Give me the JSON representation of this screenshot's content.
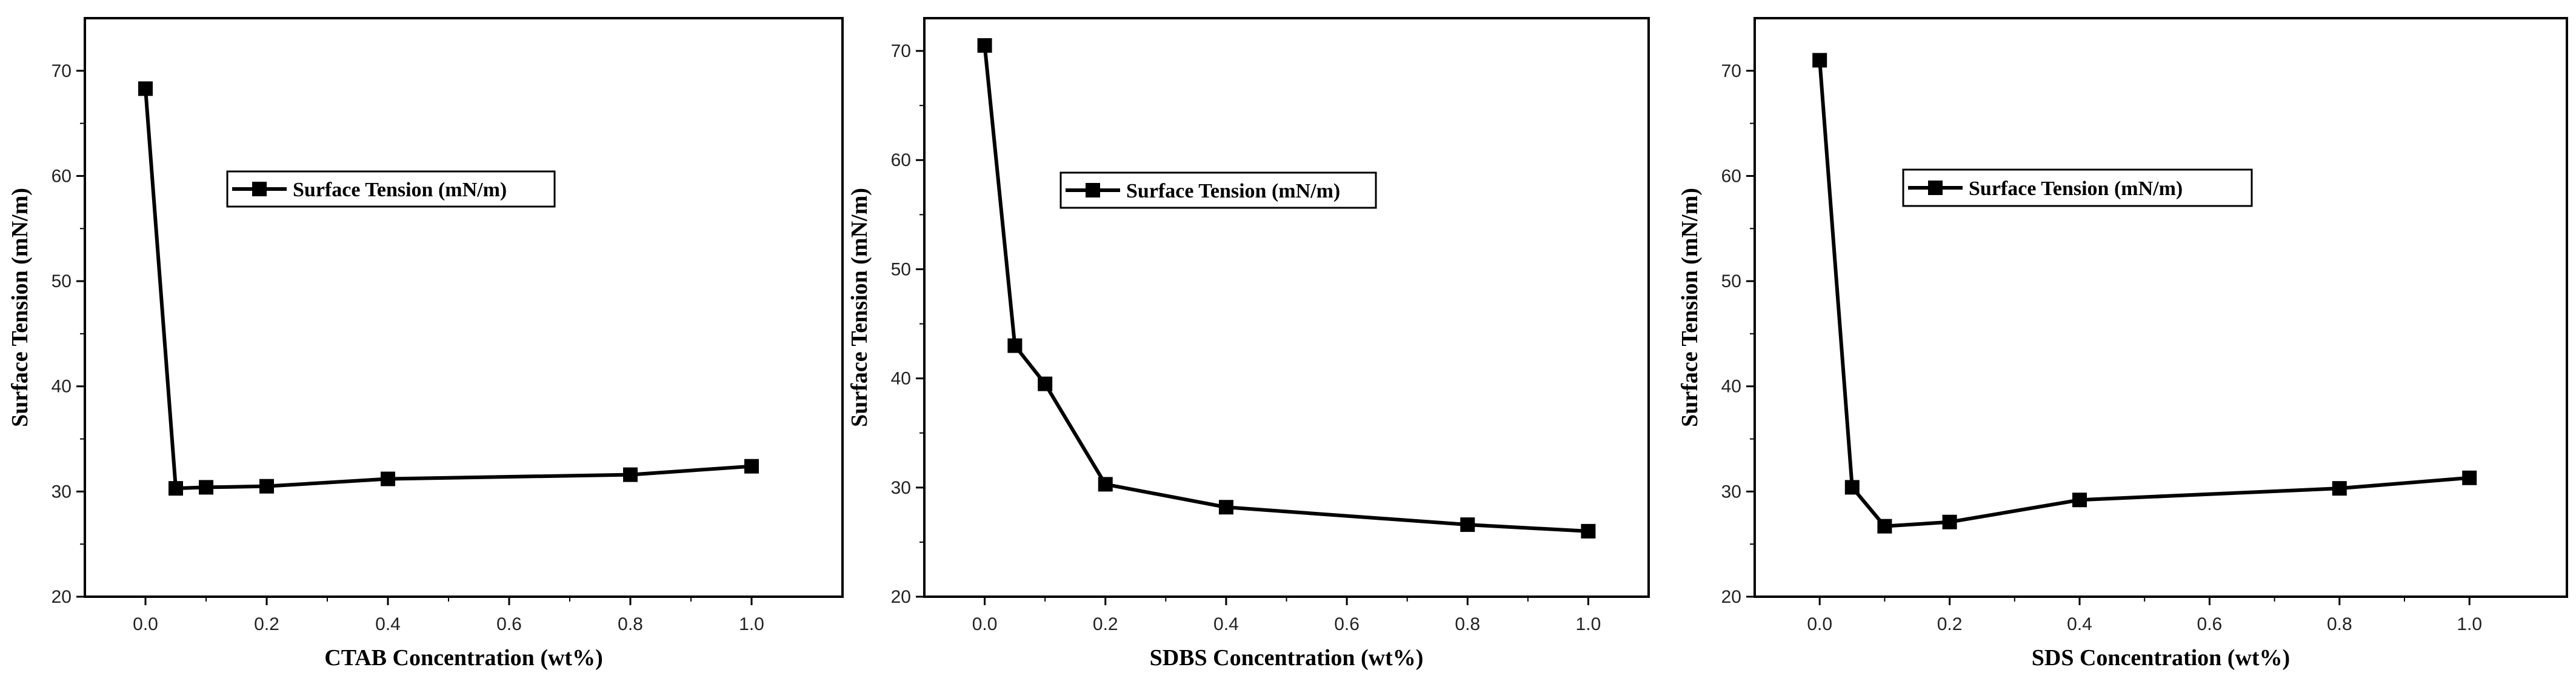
{
  "chart_data": [
    {
      "type": "line",
      "xlabel": "CTAB Concentration (wt%)",
      "ylabel": "Surface Tension (mN/m)",
      "xlim": [
        -0.1,
        1.15
      ],
      "ylim": [
        20,
        75
      ],
      "xticks": [
        0.0,
        0.2,
        0.4,
        0.6,
        0.8,
        1.0
      ],
      "xtick_labels": [
        "0.0",
        "0.2",
        "0.4",
        "0.6",
        "0.8",
        "1.0"
      ],
      "yticks": [
        20,
        30,
        40,
        50,
        60,
        70
      ],
      "ytick_labels": [
        "20",
        "30",
        "40",
        "50",
        "60",
        "70"
      ],
      "grid": false,
      "legend_position": "upper-center-left",
      "series": [
        {
          "name": "Surface Tension (mN/m)",
          "marker": "square",
          "color": "#000000",
          "x": [
            0.0,
            0.05,
            0.1,
            0.2,
            0.4,
            0.8,
            1.0
          ],
          "y": [
            68.3,
            30.3,
            30.4,
            30.5,
            31.2,
            31.6,
            32.4
          ]
        }
      ]
    },
    {
      "type": "line",
      "xlabel": "SDBS Concentration (wt%)",
      "ylabel": "Surface Tension (mN/m)",
      "xlim": [
        -0.1,
        1.1
      ],
      "ylim": [
        20,
        73
      ],
      "xticks": [
        0.0,
        0.2,
        0.4,
        0.6,
        0.8,
        1.0
      ],
      "xtick_labels": [
        "0.0",
        "0.2",
        "0.4",
        "0.6",
        "0.8",
        "1.0"
      ],
      "yticks": [
        20,
        30,
        40,
        50,
        60,
        70
      ],
      "ytick_labels": [
        "20",
        "30",
        "40",
        "50",
        "60",
        "70"
      ],
      "grid": false,
      "legend_position": "upper-center-left",
      "series": [
        {
          "name": "Surface Tension (mN/m)",
          "marker": "square",
          "color": "#000000",
          "x": [
            0.0,
            0.05,
            0.1,
            0.2,
            0.4,
            0.8,
            1.0
          ],
          "y": [
            70.5,
            43.0,
            39.5,
            30.3,
            28.2,
            26.6,
            26.0
          ]
        }
      ]
    },
    {
      "type": "line",
      "xlabel": "SDS Concentration (wt%)",
      "ylabel": "Surface Tension (mN/m)",
      "xlim": [
        -0.1,
        1.15
      ],
      "ylim": [
        20,
        75
      ],
      "xticks": [
        0.0,
        0.2,
        0.4,
        0.6,
        0.8,
        1.0
      ],
      "xtick_labels": [
        "0.0",
        "0.2",
        "0.4",
        "0.6",
        "0.8",
        "1.0"
      ],
      "yticks": [
        20,
        30,
        40,
        50,
        60,
        70
      ],
      "ytick_labels": [
        "20",
        "30",
        "40",
        "50",
        "60",
        "70"
      ],
      "grid": false,
      "legend_position": "upper-center-left",
      "series": [
        {
          "name": "Surface Tension (mN/m)",
          "marker": "square",
          "color": "#000000",
          "x": [
            0.0,
            0.05,
            0.1,
            0.2,
            0.4,
            0.8,
            1.0
          ],
          "y": [
            71.0,
            30.4,
            26.7,
            27.1,
            29.2,
            30.3,
            31.3
          ]
        }
      ]
    }
  ]
}
